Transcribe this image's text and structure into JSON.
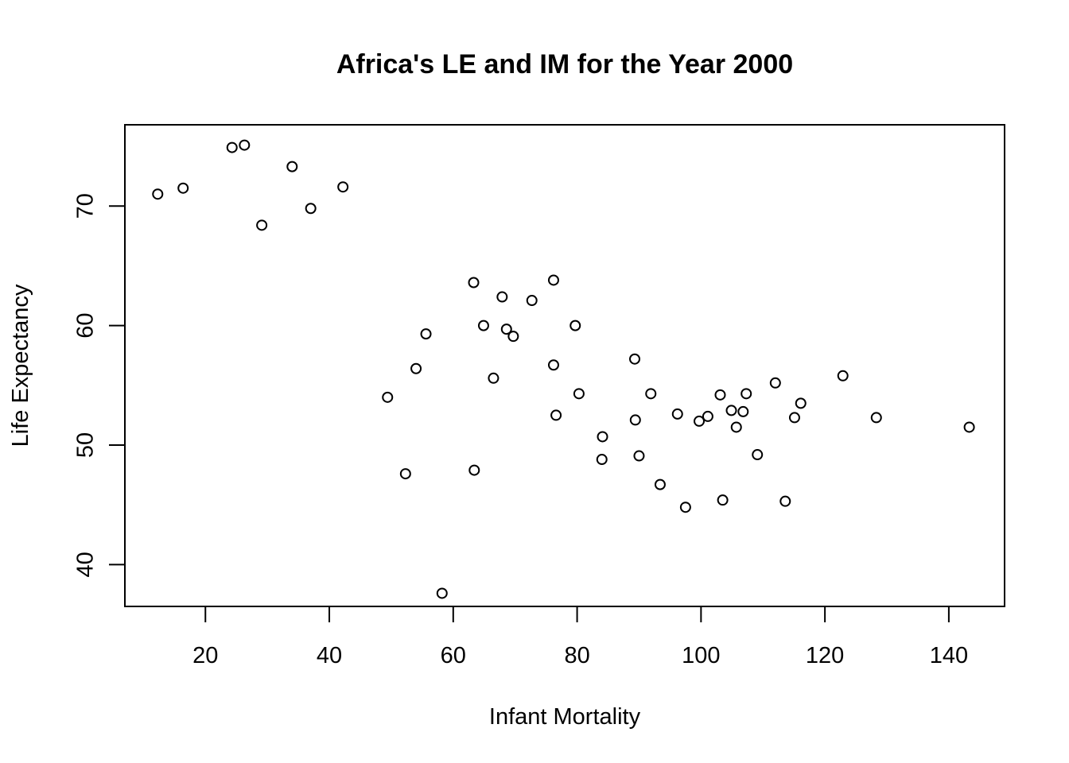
{
  "chart_data": {
    "type": "scatter",
    "title": "Africa's LE and IM for the Year 2000",
    "xlabel": "Infant Mortality",
    "ylabel": "Life Expectancy",
    "xlim": [
      7,
      149
    ],
    "ylim": [
      36.5,
      76.8
    ],
    "x_ticks": [
      20,
      40,
      60,
      80,
      100,
      120,
      140
    ],
    "y_ticks": [
      40,
      50,
      60,
      70
    ],
    "grid": false,
    "points": [
      {
        "x": 12.3,
        "y": 71.0
      },
      {
        "x": 16.4,
        "y": 71.5
      },
      {
        "x": 24.3,
        "y": 74.9
      },
      {
        "x": 26.3,
        "y": 75.1
      },
      {
        "x": 29.1,
        "y": 68.4
      },
      {
        "x": 34.0,
        "y": 73.3
      },
      {
        "x": 37.0,
        "y": 69.8
      },
      {
        "x": 42.2,
        "y": 71.6
      },
      {
        "x": 49.4,
        "y": 54.0
      },
      {
        "x": 52.3,
        "y": 47.6
      },
      {
        "x": 54.0,
        "y": 56.4
      },
      {
        "x": 55.6,
        "y": 59.3
      },
      {
        "x": 58.2,
        "y": 37.6
      },
      {
        "x": 63.3,
        "y": 63.6
      },
      {
        "x": 63.4,
        "y": 47.9
      },
      {
        "x": 64.9,
        "y": 60.0
      },
      {
        "x": 66.5,
        "y": 55.6
      },
      {
        "x": 67.9,
        "y": 62.4
      },
      {
        "x": 68.6,
        "y": 59.7
      },
      {
        "x": 69.7,
        "y": 59.1
      },
      {
        "x": 72.7,
        "y": 62.1
      },
      {
        "x": 76.2,
        "y": 63.8
      },
      {
        "x": 76.2,
        "y": 56.7
      },
      {
        "x": 76.6,
        "y": 52.5
      },
      {
        "x": 79.7,
        "y": 60.0
      },
      {
        "x": 80.3,
        "y": 54.3
      },
      {
        "x": 84.0,
        "y": 48.8
      },
      {
        "x": 84.1,
        "y": 50.7
      },
      {
        "x": 89.3,
        "y": 57.2
      },
      {
        "x": 89.4,
        "y": 52.1
      },
      {
        "x": 90.0,
        "y": 49.1
      },
      {
        "x": 91.9,
        "y": 54.3
      },
      {
        "x": 93.4,
        "y": 46.7
      },
      {
        "x": 96.2,
        "y": 52.6
      },
      {
        "x": 97.5,
        "y": 44.8
      },
      {
        "x": 99.7,
        "y": 52.0
      },
      {
        "x": 101.1,
        "y": 52.4
      },
      {
        "x": 103.1,
        "y": 54.2
      },
      {
        "x": 103.5,
        "y": 45.4
      },
      {
        "x": 104.9,
        "y": 52.9
      },
      {
        "x": 105.7,
        "y": 51.5
      },
      {
        "x": 106.8,
        "y": 52.8
      },
      {
        "x": 107.3,
        "y": 54.3
      },
      {
        "x": 109.1,
        "y": 49.2
      },
      {
        "x": 112.0,
        "y": 55.2
      },
      {
        "x": 113.6,
        "y": 45.3
      },
      {
        "x": 115.1,
        "y": 52.3
      },
      {
        "x": 116.1,
        "y": 53.5
      },
      {
        "x": 122.9,
        "y": 55.8
      },
      {
        "x": 128.3,
        "y": 52.3
      },
      {
        "x": 143.3,
        "y": 51.5
      }
    ]
  }
}
